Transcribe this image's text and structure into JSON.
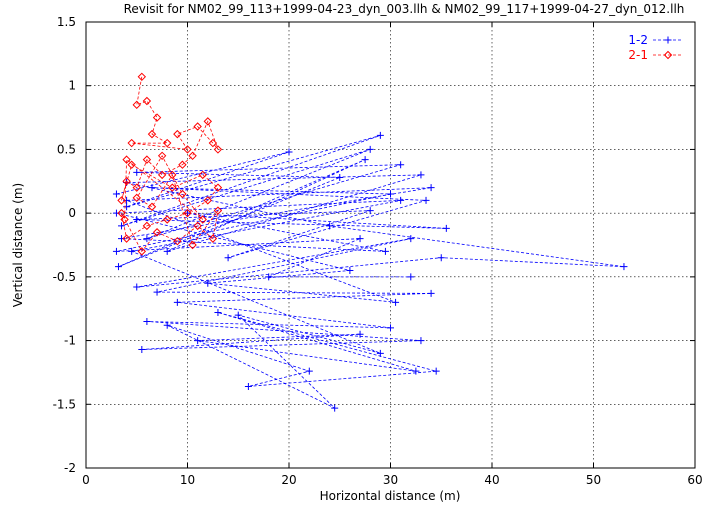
{
  "chart_data": {
    "type": "line",
    "title": "Revisit for NM02_99_113+1999-04-23_dyn_003.llh & NM02_99_117+1999-04-27_dyn_012.llh",
    "xlabel": "Horizontal distance (m)",
    "ylabel": "Vertical distance (m)",
    "xlim": [
      0,
      60
    ],
    "ylim": [
      -2,
      1.5
    ],
    "x_ticks": [
      "0",
      "10",
      "20",
      "30",
      "40",
      "50",
      "60"
    ],
    "y_ticks": [
      "1.5",
      "1",
      "0.5",
      "0",
      "-0.5",
      "-1",
      "-1.5",
      "-2"
    ],
    "grid": true,
    "legend_position": "top-right",
    "series": [
      {
        "name": "1-2",
        "color": "#0000ff",
        "marker": "plus",
        "line": "dashed",
        "points": [
          [
            3.0,
            0.15
          ],
          [
            20.0,
            0.48
          ],
          [
            4.0,
            0.05
          ],
          [
            29.0,
            0.61
          ],
          [
            3.5,
            -0.1
          ],
          [
            28.0,
            0.5
          ],
          [
            6.0,
            -0.2
          ],
          [
            31.0,
            0.38
          ],
          [
            5.0,
            0.32
          ],
          [
            25.0,
            0.28
          ],
          [
            3.2,
            -0.42
          ],
          [
            27.5,
            0.42
          ],
          [
            8.0,
            -0.3
          ],
          [
            33.0,
            0.3
          ],
          [
            4.0,
            0.24
          ],
          [
            24.0,
            -0.1
          ],
          [
            53.0,
            -0.42
          ],
          [
            35.0,
            -0.35
          ],
          [
            5.0,
            -0.58
          ],
          [
            32.0,
            -0.2
          ],
          [
            7.0,
            -0.62
          ],
          [
            34.0,
            -0.63
          ],
          [
            9.0,
            -0.7
          ],
          [
            30.0,
            -0.9
          ],
          [
            6.0,
            -0.85
          ],
          [
            33.0,
            -1.0
          ],
          [
            5.5,
            -1.07
          ],
          [
            27.0,
            -0.95
          ],
          [
            11.0,
            -1.0
          ],
          [
            32.5,
            -1.24
          ],
          [
            13.0,
            -0.78
          ],
          [
            34.5,
            -1.24
          ],
          [
            16.0,
            -1.36
          ],
          [
            22.0,
            -1.24
          ],
          [
            8.0,
            -0.88
          ],
          [
            24.5,
            -1.53
          ],
          [
            15.0,
            -0.8
          ],
          [
            29.0,
            -1.1
          ],
          [
            4.5,
            -0.3
          ],
          [
            31.0,
            0.1
          ],
          [
            3.0,
            0.0
          ],
          [
            26.0,
            -0.45
          ],
          [
            12.0,
            -0.55
          ],
          [
            30.5,
            -0.7
          ],
          [
            4.0,
            0.1
          ],
          [
            34.0,
            0.2
          ],
          [
            3.5,
            -0.2
          ],
          [
            29.5,
            -0.3
          ],
          [
            10.0,
            0.0
          ],
          [
            35.5,
            -0.12
          ],
          [
            5.0,
            -0.05
          ],
          [
            28.0,
            0.02
          ],
          [
            14.0,
            -0.35
          ],
          [
            33.5,
            0.1
          ],
          [
            6.5,
            0.2
          ],
          [
            30.0,
            0.15
          ],
          [
            3.0,
            -0.3
          ],
          [
            27.0,
            -0.2
          ],
          [
            18.0,
            -0.5
          ],
          [
            32.0,
            -0.5
          ]
        ]
      },
      {
        "name": "2-1",
        "color": "#ff0000",
        "marker": "diamond",
        "line": "dashed",
        "points": [
          [
            5.5,
            1.07
          ],
          [
            5.0,
            0.85
          ],
          [
            6.0,
            0.88
          ],
          [
            7.0,
            0.75
          ],
          [
            6.5,
            0.62
          ],
          [
            8.0,
            0.55
          ],
          [
            4.5,
            0.55
          ],
          [
            10.0,
            0.5
          ],
          [
            9.0,
            0.62
          ],
          [
            11.0,
            0.68
          ],
          [
            12.5,
            0.55
          ],
          [
            13.0,
            0.5
          ],
          [
            12.0,
            0.72
          ],
          [
            10.5,
            0.45
          ],
          [
            9.5,
            0.38
          ],
          [
            7.5,
            0.3
          ],
          [
            6.0,
            0.42
          ],
          [
            5.0,
            0.2
          ],
          [
            4.0,
            0.25
          ],
          [
            3.5,
            0.1
          ],
          [
            4.5,
            0.38
          ],
          [
            8.5,
            0.2
          ],
          [
            11.5,
            0.3
          ],
          [
            13.0,
            0.2
          ],
          [
            12.0,
            0.1
          ],
          [
            10.0,
            0.0
          ],
          [
            8.0,
            -0.05
          ],
          [
            6.0,
            -0.1
          ],
          [
            4.0,
            -0.2
          ],
          [
            3.5,
            0.0
          ],
          [
            5.5,
            -0.3
          ],
          [
            7.0,
            -0.15
          ],
          [
            9.0,
            -0.22
          ],
          [
            11.0,
            -0.1
          ],
          [
            12.5,
            -0.2
          ],
          [
            13.0,
            0.02
          ],
          [
            10.5,
            -0.25
          ],
          [
            8.5,
            0.3
          ],
          [
            6.5,
            0.05
          ],
          [
            5.0,
            0.12
          ],
          [
            7.5,
            0.45
          ],
          [
            9.5,
            0.15
          ],
          [
            11.5,
            -0.05
          ],
          [
            4.0,
            0.42
          ],
          [
            3.8,
            -0.05
          ]
        ]
      }
    ]
  }
}
